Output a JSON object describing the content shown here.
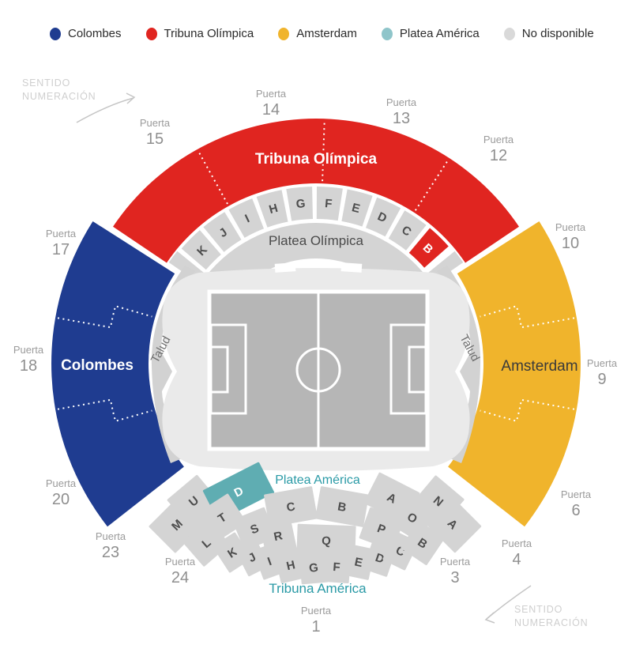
{
  "legend": {
    "items": [
      {
        "label": "Colombes",
        "color": "#1F3C90"
      },
      {
        "label": "Tribuna Olímpica",
        "color": "#E02520"
      },
      {
        "label": "Amsterdam",
        "color": "#F0B42C"
      },
      {
        "label": "Platea América",
        "color": "#8FC5CA"
      },
      {
        "label": "No disponible",
        "color": "#D9D9D9"
      }
    ]
  },
  "direction_note": {
    "line1": "SENTIDO",
    "line2": "NUMERACIÓN"
  },
  "labels": {
    "tribuna_olimpica": "Tribuna Olímpica",
    "platea_olimpica": "Platea Olímpica",
    "colombes": "Colombes",
    "amsterdam": "Amsterdam",
    "talud": "Talud",
    "platea_america": "Platea América",
    "tribuna_america": "Tribuna América"
  },
  "rows": {
    "top": [
      "K",
      "J",
      "I",
      "H",
      "G",
      "F",
      "E",
      "D",
      "C",
      "B"
    ],
    "bottom_inner": [
      "U",
      "D",
      "C",
      "B",
      "A",
      "N"
    ],
    "bottom_middle": [
      "M",
      "T",
      "S",
      "R",
      "Q",
      "P",
      "O",
      "A"
    ],
    "bottom_outer": [
      "L",
      "K",
      "J",
      "I",
      "H",
      "G",
      "F",
      "E",
      "D",
      "C",
      "B"
    ]
  },
  "gates": {
    "label": "Puerta",
    "list": [
      "15",
      "14",
      "13",
      "12",
      "17",
      "10",
      "18",
      "9",
      "20",
      "6",
      "23",
      "4",
      "24",
      "3",
      "1"
    ]
  },
  "colors": {
    "blue": "#1F3C90",
    "red": "#E02520",
    "amber": "#F0B42C",
    "teal": "#5FADB2",
    "teal_light": "#8FC5CA",
    "teal_text": "#2A9AA6",
    "cell_gray": "#D4D4D4",
    "cell_letter": "#4d4d4d",
    "bowl": "#EAEAEA",
    "talud": "#D2D2D2",
    "pitch": "#B6B6B6",
    "unavailable": "#D9D9D9"
  }
}
